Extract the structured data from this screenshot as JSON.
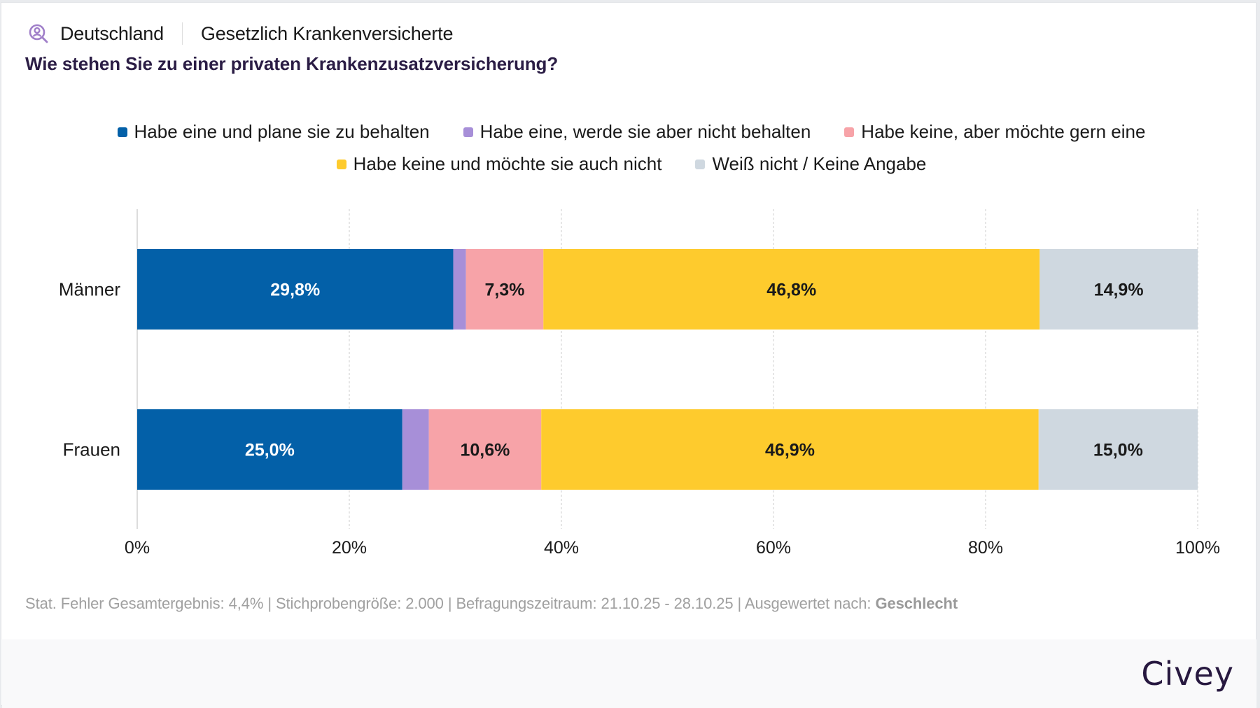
{
  "header": {
    "icon": "user-search-icon",
    "region": "Deutschland",
    "population": "Gesetzlich Krankenversicherte",
    "question": "Wie stehen Sie zu einer privaten Krankenzusatzversicherung?"
  },
  "legend": [
    {
      "label": "Habe eine und plane sie zu behalten",
      "color": "#0360a8"
    },
    {
      "label": "Habe eine, werde sie aber nicht behalten",
      "color": "#a78fd8"
    },
    {
      "label": "Habe keine, aber möchte gern eine",
      "color": "#f7a3a8"
    },
    {
      "label": "Habe keine und möchte sie auch nicht",
      "color": "#fecb2d"
    },
    {
      "label": "Weiß nicht / Keine Angabe",
      "color": "#cfd8e0"
    }
  ],
  "footer": {
    "stats": "Stat. Fehler Gesamtergebnis: 4,4% | Stichprobengröße: 2.000 | Befragungszeitraum: 21.10.25 - 28.10.25 | Ausgewertet nach: ",
    "grouped_by": "Geschlecht",
    "brand": "Civey"
  },
  "chart_data": {
    "type": "bar",
    "orientation": "horizontal",
    "stacked": true,
    "title": "Wie stehen Sie zu einer privaten Krankenzusatzversicherung?",
    "categories": [
      "Männer",
      "Frauen"
    ],
    "series": [
      {
        "name": "Habe eine und plane sie zu behalten",
        "color": "#0360a8",
        "label_color": "#ffffff",
        "values": [
          29.8,
          25.0
        ],
        "labels": [
          "29,8%",
          "25,0%"
        ]
      },
      {
        "name": "Habe eine, werde sie aber nicht behalten",
        "color": "#a78fd8",
        "label_color": "#1a1a1a",
        "values": [
          1.2,
          2.5
        ],
        "labels": [
          "",
          ""
        ]
      },
      {
        "name": "Habe keine, aber möchte gern eine",
        "color": "#f7a3a8",
        "label_color": "#1a1a1a",
        "values": [
          7.3,
          10.6
        ],
        "labels": [
          "7,3%",
          "10,6%"
        ]
      },
      {
        "name": "Habe keine und möchte sie auch nicht",
        "color": "#fecb2d",
        "label_color": "#1a1a1a",
        "values": [
          46.8,
          46.9
        ],
        "labels": [
          "46,8%",
          "46,9%"
        ]
      },
      {
        "name": "Weiß nicht / Keine Angabe",
        "color": "#cfd8e0",
        "label_color": "#1a1a1a",
        "values": [
          14.9,
          15.0
        ],
        "labels": [
          "14,9%",
          "15,0%"
        ]
      }
    ],
    "xlim": [
      0,
      100
    ],
    "xticks": [
      0,
      20,
      40,
      60,
      80,
      100
    ],
    "xtick_labels": [
      "0%",
      "20%",
      "40%",
      "60%",
      "80%",
      "100%"
    ],
    "xlabel": "",
    "ylabel": "",
    "grid": true,
    "legend_position": "top-center"
  }
}
